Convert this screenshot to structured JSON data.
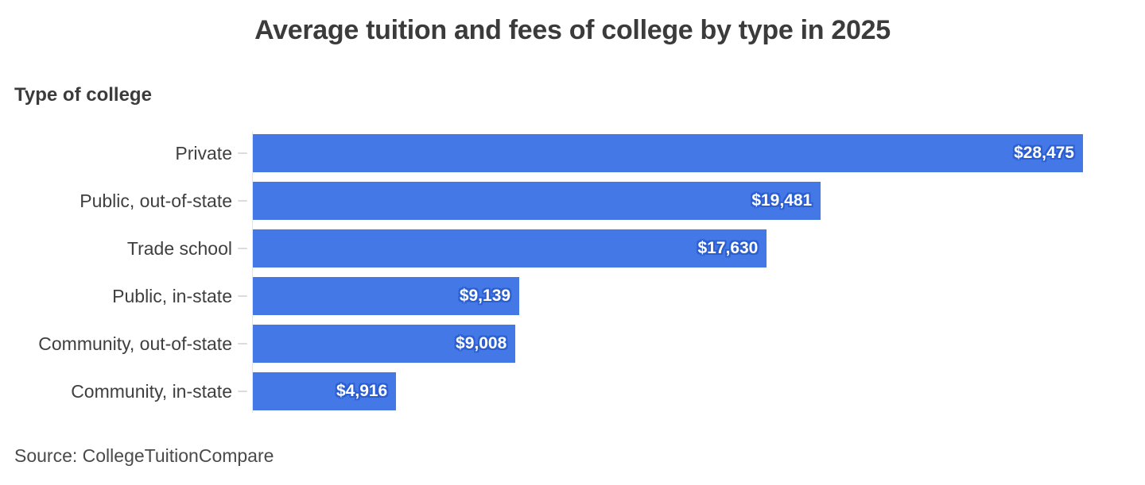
{
  "title": "Average tuition and fees of college by type in 2025",
  "axis_label": "Type of college",
  "source": "Source: CollegeTuitionCompare",
  "colors": {
    "bar": "#4478e6",
    "value_text": "#ffffff",
    "value_halo": "#2b5ed1",
    "title_text": "#3b3b3b",
    "label_text": "#3f3f3f",
    "source_text": "#4a4a4a",
    "axis_line": "#e6e6e6",
    "background": "#ffffff"
  },
  "chart_data": {
    "type": "bar",
    "orientation": "horizontal",
    "title": "Average tuition and fees of college by type in 2025",
    "ylabel": "Type of college",
    "xlabel": "",
    "categories": [
      "Private",
      "Public, out-of-state",
      "Trade school",
      "Public, in-state",
      "Community, out-of-state",
      "Community, in-state"
    ],
    "values": [
      28475,
      19481,
      17630,
      9139,
      9008,
      4916
    ],
    "value_labels": [
      "$28,475",
      "$19,481",
      "$17,630",
      "$9,139",
      "$9,008",
      "$4,916"
    ],
    "xlim": [
      0,
      28475
    ],
    "grid": false,
    "legend": null,
    "value_label_position": "inside-end",
    "source": "Source: CollegeTuitionCompare"
  }
}
